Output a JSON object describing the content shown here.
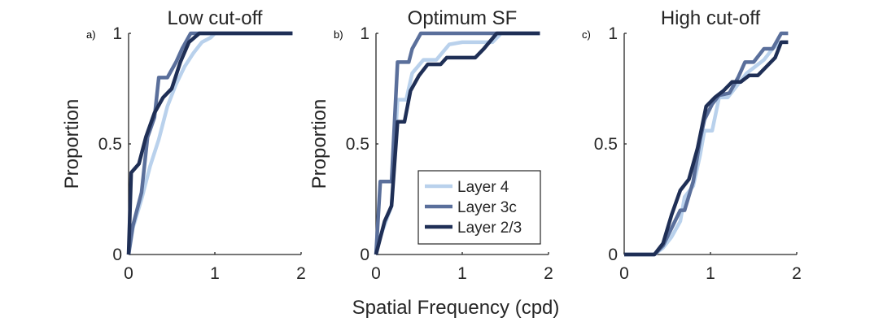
{
  "figure": {
    "xlabel": "Spatial Frequency (cpd)"
  },
  "colors": {
    "layer4": "#b9d1ec",
    "layer3c": "#5a6f9b",
    "layer23": "#1f2f56"
  },
  "legend": {
    "items": [
      "Layer 4",
      "Layer 3c",
      "Layer 2/3"
    ],
    "placement": "inside-bottom-right of panel b"
  },
  "chart_data": [
    {
      "type": "line",
      "panel_label": "a)",
      "title": "Low cut-off",
      "xlabel": "",
      "ylabel": "Proportion",
      "xlim": [
        0,
        2
      ],
      "ylim": [
        0,
        1
      ],
      "xticks": [
        "0",
        "1",
        "2"
      ],
      "yticks": [
        "0",
        "0.5",
        "1"
      ],
      "series": [
        {
          "name": "Layer 4",
          "x": [
            0,
            0.05,
            0.15,
            0.25,
            0.35,
            0.45,
            0.55,
            0.65,
            0.75,
            0.85,
            0.95,
            1.0,
            1.1,
            1.5,
            1.9
          ],
          "y": [
            0,
            0.12,
            0.25,
            0.4,
            0.52,
            0.67,
            0.77,
            0.85,
            0.91,
            0.96,
            0.98,
            1,
            1,
            1,
            1
          ]
        },
        {
          "name": "Layer 3c",
          "x": [
            0,
            0.05,
            0.15,
            0.22,
            0.3,
            0.35,
            0.45,
            0.55,
            0.62,
            0.72,
            0.8,
            1.9
          ],
          "y": [
            0,
            0.13,
            0.28,
            0.53,
            0.62,
            0.8,
            0.8,
            0.87,
            0.93,
            1,
            1,
            1
          ]
        },
        {
          "name": "Layer 2/3",
          "x": [
            0,
            0.03,
            0.12,
            0.2,
            0.3,
            0.4,
            0.5,
            0.6,
            0.7,
            0.82,
            1.9
          ],
          "y": [
            0,
            0.37,
            0.41,
            0.53,
            0.64,
            0.71,
            0.75,
            0.87,
            0.96,
            1,
            1
          ]
        }
      ]
    },
    {
      "type": "line",
      "panel_label": "b)",
      "title": "Optimum SF",
      "xlabel": "",
      "ylabel": "Proportion",
      "xlim": [
        0,
        2
      ],
      "ylim": [
        0,
        1
      ],
      "xticks": [
        "0",
        "1",
        "2"
      ],
      "yticks": [
        "0",
        "0.5",
        "1"
      ],
      "series": [
        {
          "name": "Layer 4",
          "x": [
            0,
            0.05,
            0.18,
            0.25,
            0.35,
            0.42,
            0.55,
            0.7,
            0.85,
            1.0,
            1.2,
            1.35,
            1.45,
            1.9
          ],
          "y": [
            0,
            0.08,
            0.22,
            0.7,
            0.7,
            0.82,
            0.88,
            0.88,
            0.95,
            0.96,
            0.96,
            0.96,
            1,
            1
          ]
        },
        {
          "name": "Layer 3c",
          "x": [
            0,
            0.05,
            0.18,
            0.25,
            0.38,
            0.42,
            0.52,
            1.9
          ],
          "y": [
            0,
            0.33,
            0.33,
            0.87,
            0.87,
            0.93,
            1,
            1
          ]
        },
        {
          "name": "Layer 2/3",
          "x": [
            0,
            0.1,
            0.18,
            0.25,
            0.33,
            0.4,
            0.5,
            0.6,
            0.75,
            0.82,
            0.95,
            1.15,
            1.25,
            1.4,
            1.9
          ],
          "y": [
            0,
            0.15,
            0.22,
            0.6,
            0.6,
            0.74,
            0.81,
            0.86,
            0.86,
            0.89,
            0.89,
            0.89,
            0.93,
            1,
            1
          ]
        }
      ]
    },
    {
      "type": "line",
      "panel_label": "c)",
      "title": "High cut-off",
      "xlabel": "",
      "ylabel": "",
      "xlim": [
        0,
        2
      ],
      "ylim": [
        0,
        1
      ],
      "xticks": [
        "0",
        "1",
        "2"
      ],
      "yticks": [
        "0",
        "0.5",
        "1"
      ],
      "series": [
        {
          "name": "Layer 4",
          "x": [
            0,
            0.35,
            0.45,
            0.55,
            0.65,
            0.7,
            0.8,
            0.88,
            0.93,
            1.02,
            1.1,
            1.2,
            1.32,
            1.42,
            1.52,
            1.62,
            1.72,
            1.82,
            1.9
          ],
          "y": [
            0,
            0,
            0.03,
            0.08,
            0.15,
            0.26,
            0.31,
            0.45,
            0.56,
            0.56,
            0.71,
            0.71,
            0.77,
            0.82,
            0.85,
            0.88,
            0.93,
            0.96,
            0.96
          ]
        },
        {
          "name": "Layer 3c",
          "x": [
            0,
            0.35,
            0.45,
            0.55,
            0.65,
            0.7,
            0.8,
            0.88,
            0.93,
            1.02,
            1.1,
            1.22,
            1.32,
            1.4,
            1.5,
            1.62,
            1.72,
            1.82,
            1.9
          ],
          "y": [
            0,
            0,
            0.04,
            0.12,
            0.2,
            0.2,
            0.33,
            0.52,
            0.61,
            0.68,
            0.72,
            0.73,
            0.8,
            0.87,
            0.87,
            0.93,
            0.93,
            1,
            1
          ]
        },
        {
          "name": "Layer 2/3",
          "x": [
            0,
            0.35,
            0.45,
            0.55,
            0.65,
            0.75,
            0.85,
            0.95,
            1.05,
            1.15,
            1.25,
            1.35,
            1.45,
            1.55,
            1.65,
            1.75,
            1.82,
            1.9
          ],
          "y": [
            0,
            0,
            0.05,
            0.18,
            0.29,
            0.34,
            0.48,
            0.67,
            0.71,
            0.74,
            0.78,
            0.78,
            0.81,
            0.81,
            0.85,
            0.89,
            0.96,
            0.96
          ]
        }
      ]
    }
  ]
}
